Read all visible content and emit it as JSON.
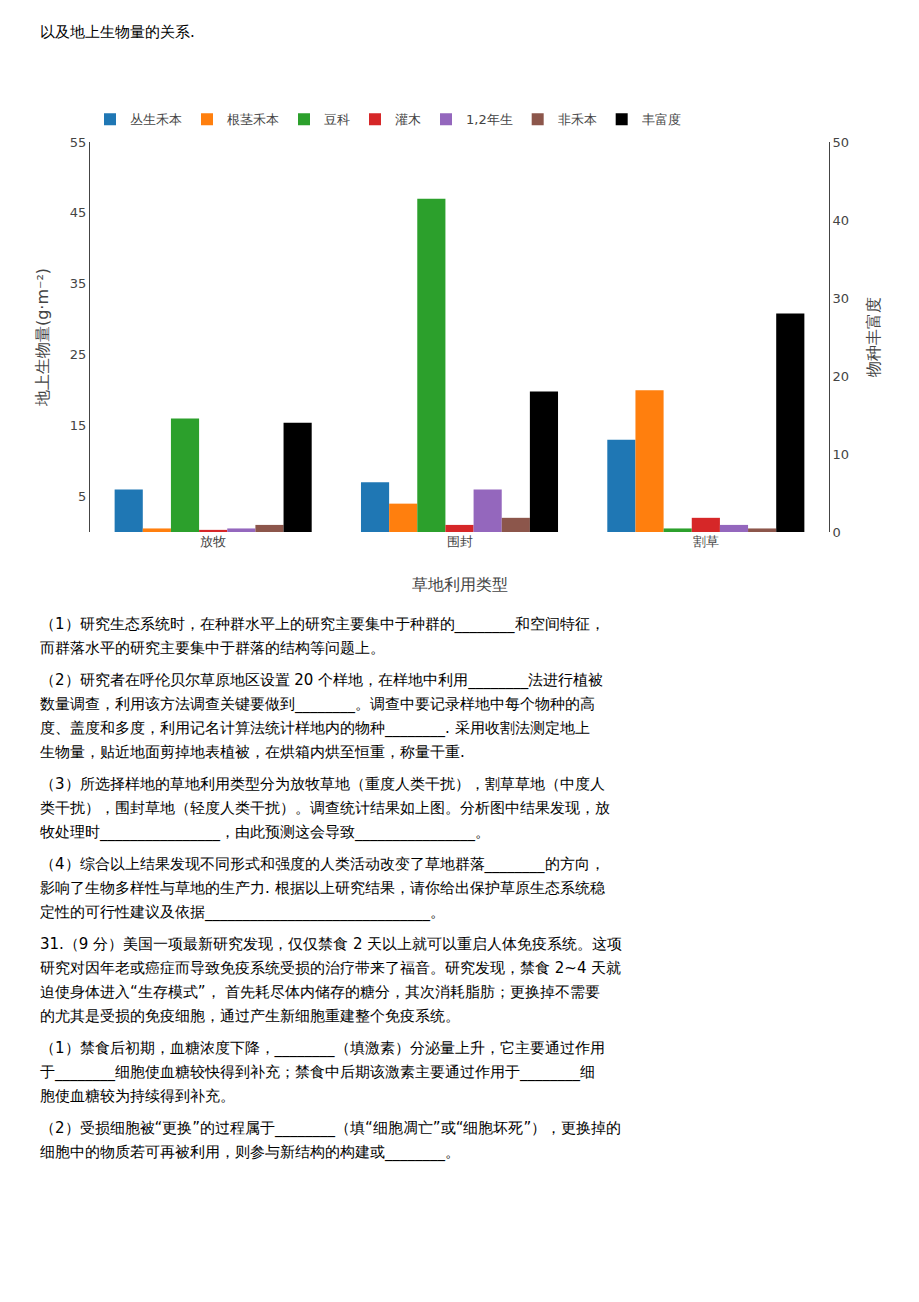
{
  "chart_data": {
    "type": "bar",
    "annotations": [
      [
        "以及地上生物量的关系."
      ],
      [
        "（1）研究生态系统时，在种群水平上的研究主要集中于种群的________和空间特征，",
        "而群落水平的研究主要集中于群落的结构等问题上。"
      ],
      [
        "（2）研究者在呼伦贝尔草原地区设置 20 个样地，在样地中利用________法进行植被",
        "数量调查，利用该方法调查关键要做到________。调查中要记录样地中每个物种的高",
        "度、盖度和多度，利用记名计算法统计样地内的物种________. 采用收割法测定地上",
        "生物量，贴近地面剪掉地表植被，在烘箱内烘至恒重，称量干重."
      ],
      [
        "（3）所选择样地的草地利用类型分为放牧草地（重度人类干扰），割草草地（中度人",
        "类干扰），围封草地（轻度人类干扰）。调查统计结果如上图。分析图中结果发现，放",
        "牧处理时________________，由此预测这会导致________________。"
      ],
      [
        "（4）综合以上结果发现不同形式和强度的人类活动改变了草地群落________的方向，",
        "影响了生物多样性与草地的生产力. 根据以上研究结果，请你给出保护草原生态系统稳",
        "定性的可行性建议及依据______________________________。"
      ],
      [
        "31.（9 分）美国一项最新研究发现，仅仅禁食 2 天以上就可以重启人体免疫系统。这项",
        "研究对因年老或癌症而导致免疫系统受损的治疗带来了福音。研究发现，禁食 2~4 天就",
        "迫使身体进入“生存模式”， 首先耗尽体内储存的糖分，其次消耗脂肪；更换掉不需要",
        "的尤其是受损的免疫细胞，通过产生新细胞重建整个免疫系统。"
      ],
      [
        "（1）禁食后初期，血糖浓度下降，________（填激素）分泌量上升，它主要通过作用",
        "于________细胞使血糖较快得到补充；禁食中后期该激素主要通过作用于________细",
        "胞使血糖较为持续得到补充。"
      ],
      [
        "（2）受损细胞被“更换”的过程属于________（填“细胞凋亡”或“细胞坏死”），更换掉的",
        "细胞中的物质若可再被利用，则参与新结构的构建或________。"
      ]
    ],
    "x_label": "草地利用类型",
    "y_label": "地上生物量(g·m⁻²)",
    "y2_label": "物种丰富度",
    "categories": [
      "放牧",
      "围封",
      "割草"
    ],
    "series": [
      {
        "name": "丛生禾本",
        "values": [
          6,
          7,
          13
        ]
      },
      {
        "name": "根茎禾本",
        "values": [
          0.5,
          4,
          20
        ]
      },
      {
        "name": "豆科",
        "values": [
          16,
          47,
          0.5
        ]
      },
      {
        "name": "灌木",
        "values": [
          0.3,
          1.0,
          2.0
        ]
      },
      {
        "name": "1,2年生",
        "values": [
          0.5,
          6,
          1.0
        ]
      },
      {
        "name": "非禾本",
        "values": [
          1.0,
          2.0,
          0.5
        ]
      },
      {
        "name": "丰富度",
        "values": [
          14,
          18,
          28
        ],
        "axis": "y2",
        "color": "black"
      }
    ],
    "ylim": [
      0,
      55
    ],
    "yticks": [
      5,
      15,
      25,
      35,
      45,
      55
    ],
    "y2lim": [
      0,
      50
    ],
    "y2ticks": [
      0,
      10,
      20,
      30,
      40,
      50
    ],
    "grid": false,
    "legend": "top"
  }
}
